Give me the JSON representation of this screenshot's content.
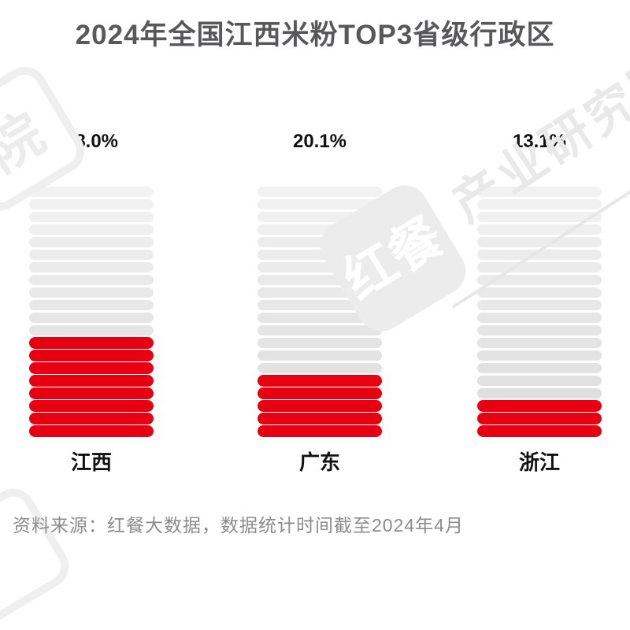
{
  "header": {
    "title": "2024年全国江西米粉TOP3省级行政区"
  },
  "chart_data": {
    "type": "bar",
    "title": "2024年全国江西米粉TOP3省级行政区",
    "categories": [
      "江西",
      "广东",
      "浙江"
    ],
    "values": [
      38.0,
      20.1,
      13.1
    ],
    "value_labels": [
      "38.0%",
      "20.1%",
      "13.1%"
    ],
    "unit": "percent",
    "orientation": "vertical",
    "segments_total": 20,
    "segments_filled": [
      8,
      5,
      3
    ],
    "ylim": [
      0,
      100
    ],
    "grid": false,
    "legend": "none"
  },
  "watermark": {
    "brand": "红餐",
    "org": "产业研究院",
    "corner_glyph": "院"
  },
  "footer": {
    "source": "资料来源：红餐大数据，数据统计时间截至2024年4月"
  },
  "colors": {
    "background": "#ffffff",
    "title_text": "#58585a",
    "bar_red": "#e60012",
    "bar_gray_top": "#f2f2f2",
    "bar_gray_bottom": "#dcdcdc",
    "label_text": "#111111",
    "footer_text": "#8c8c8c",
    "watermark_gray": "#ececec"
  }
}
